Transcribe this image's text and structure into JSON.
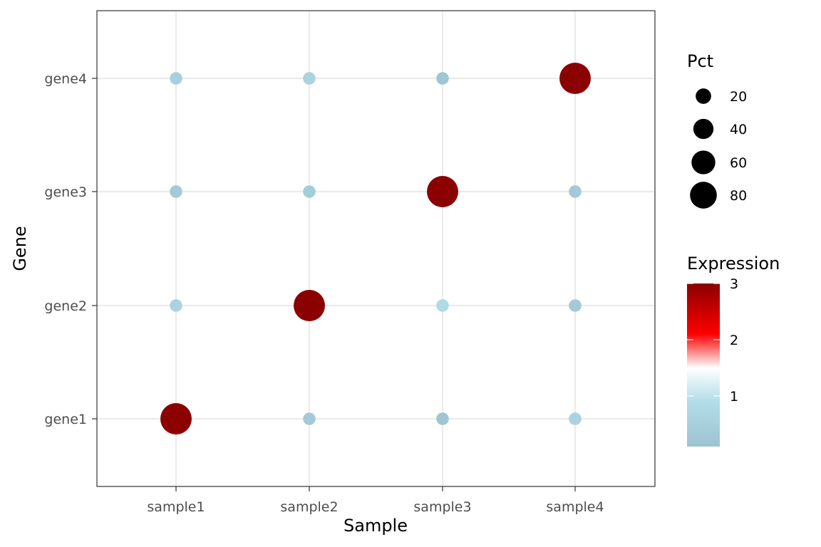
{
  "chart_data": {
    "type": "scatter",
    "xlabel": "Sample",
    "ylabel": "Gene",
    "x_categories": [
      "sample1",
      "sample2",
      "sample3",
      "sample4"
    ],
    "y_categories": [
      "gene1",
      "gene2",
      "gene3",
      "gene4"
    ],
    "grid": true,
    "points": [
      {
        "sample": "sample1",
        "gene": "gene1",
        "expression": 3.0,
        "pct": 90
      },
      {
        "sample": "sample2",
        "gene": "gene1",
        "expression": 0.3,
        "pct": 8
      },
      {
        "sample": "sample3",
        "gene": "gene1",
        "expression": 0.2,
        "pct": 8
      },
      {
        "sample": "sample4",
        "gene": "gene1",
        "expression": 0.6,
        "pct": 8
      },
      {
        "sample": "sample1",
        "gene": "gene2",
        "expression": 0.6,
        "pct": 8
      },
      {
        "sample": "sample2",
        "gene": "gene2",
        "expression": 3.0,
        "pct": 90
      },
      {
        "sample": "sample3",
        "gene": "gene2",
        "expression": 0.8,
        "pct": 8
      },
      {
        "sample": "sample4",
        "gene": "gene2",
        "expression": 0.3,
        "pct": 8
      },
      {
        "sample": "sample1",
        "gene": "gene3",
        "expression": 0.3,
        "pct": 8
      },
      {
        "sample": "sample2",
        "gene": "gene3",
        "expression": 0.4,
        "pct": 8
      },
      {
        "sample": "sample3",
        "gene": "gene3",
        "expression": 3.0,
        "pct": 90
      },
      {
        "sample": "sample4",
        "gene": "gene3",
        "expression": 0.3,
        "pct": 8
      },
      {
        "sample": "sample1",
        "gene": "gene4",
        "expression": 0.5,
        "pct": 8
      },
      {
        "sample": "sample2",
        "gene": "gene4",
        "expression": 0.6,
        "pct": 8
      },
      {
        "sample": "sample3",
        "gene": "gene4",
        "expression": 0.2,
        "pct": 8
      },
      {
        "sample": "sample4",
        "gene": "gene4",
        "expression": 3.0,
        "pct": 90
      }
    ],
    "size_legend": {
      "title": "Pct",
      "breaks": [
        20,
        40,
        60,
        80
      ]
    },
    "color_legend": {
      "title": "Expression",
      "breaks": [
        1,
        2,
        3
      ],
      "range": [
        0.1,
        3.0
      ],
      "colors": [
        {
          "value": 0.1,
          "color": "#9dc3d0"
        },
        {
          "value": 0.9,
          "color": "#b3dde8"
        },
        {
          "value": 1.5,
          "color": "#ffffff"
        },
        {
          "value": 2.1,
          "color": "#ff0000"
        },
        {
          "value": 3.0,
          "color": "#8b0000"
        }
      ]
    }
  }
}
